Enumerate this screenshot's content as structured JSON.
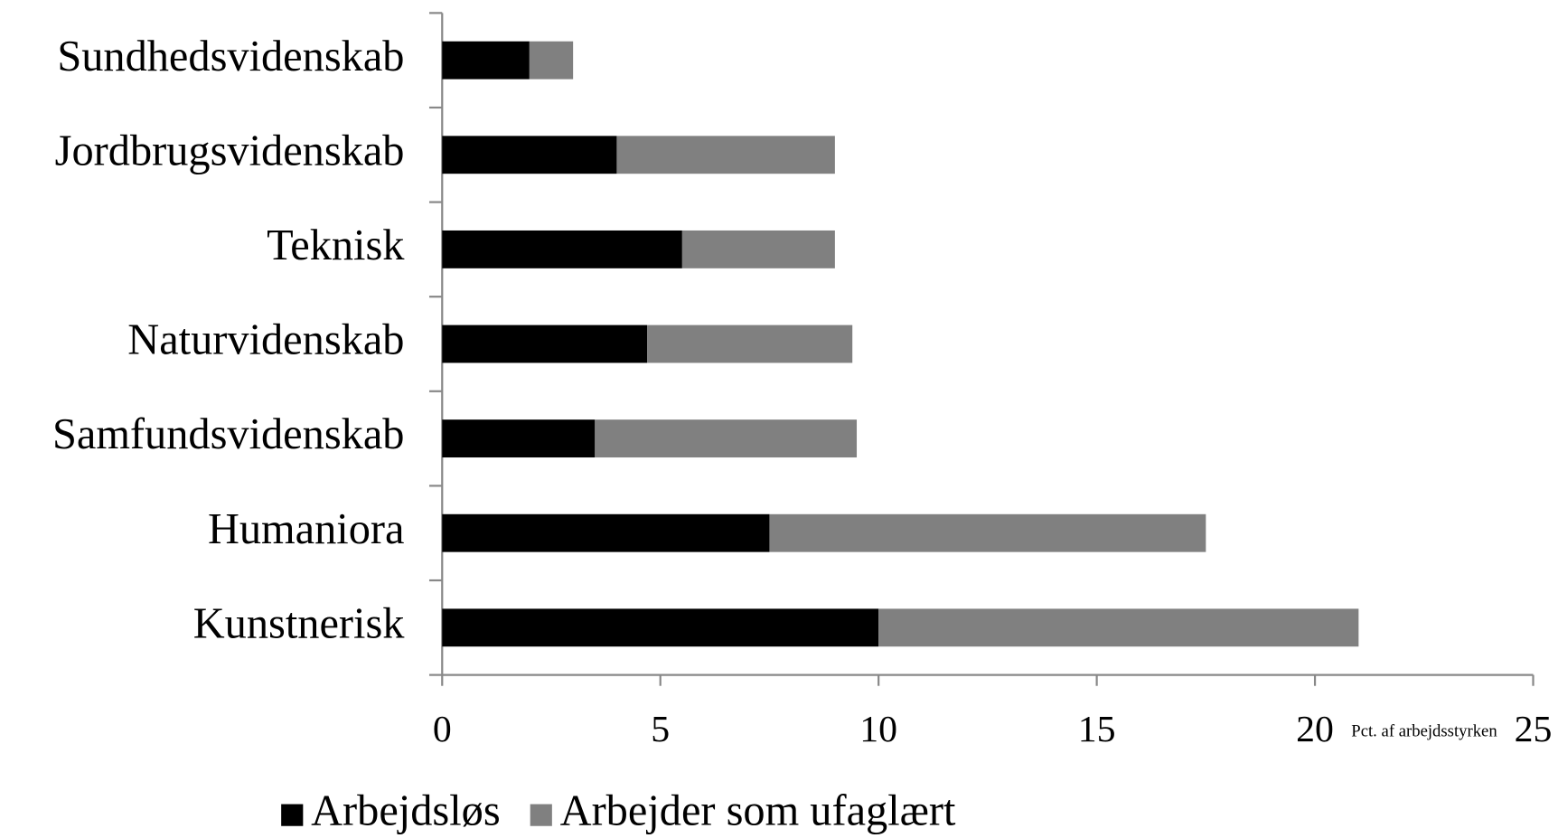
{
  "chart_data": {
    "type": "stacked_barh",
    "categories": [
      "Sundhedsvidenskab",
      "Jordbrugsvidenskab",
      "Teknisk",
      "Naturvidenskab",
      "Samfundsvidenskab",
      "Humaniora",
      "Kunstnerisk"
    ],
    "series": [
      {
        "name": "Arbejdsløs",
        "color": "#000000",
        "values": [
          2,
          4,
          5.5,
          4.7,
          3.5,
          7.5,
          10
        ]
      },
      {
        "name": "Arbejder som ufaglært",
        "color": "#808080",
        "values": [
          1,
          5,
          3.5,
          4.7,
          6,
          10,
          11
        ]
      }
    ],
    "xlabel": "Pct. af arbejdsstyrken",
    "xlim": [
      0,
      25
    ],
    "xticks": [
      0,
      5,
      10,
      15,
      20,
      25
    ],
    "legend": "bottom",
    "grid": false
  }
}
